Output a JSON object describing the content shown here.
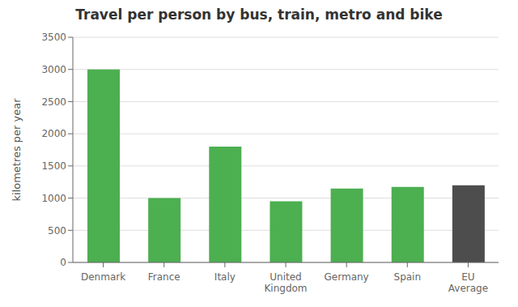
{
  "chart_data": {
    "type": "bar",
    "title": "Travel per person by bus, train, metro and bike",
    "categories": [
      "Denmark",
      "France",
      "Italy",
      "United\nKingdom",
      "Germany",
      "Spain",
      "EU\nAverage"
    ],
    "values": [
      3000,
      1000,
      1800,
      950,
      1150,
      1175,
      1200
    ],
    "colors": [
      "#4caf50",
      "#4caf50",
      "#4caf50",
      "#4caf50",
      "#4caf50",
      "#4caf50",
      "#4d4d4d"
    ],
    "ylabel": "kilometres per year",
    "ylim": [
      0,
      3500
    ],
    "yticks": [
      0,
      500,
      1000,
      1500,
      2000,
      2500,
      3000,
      3500
    ],
    "grid": true
  }
}
